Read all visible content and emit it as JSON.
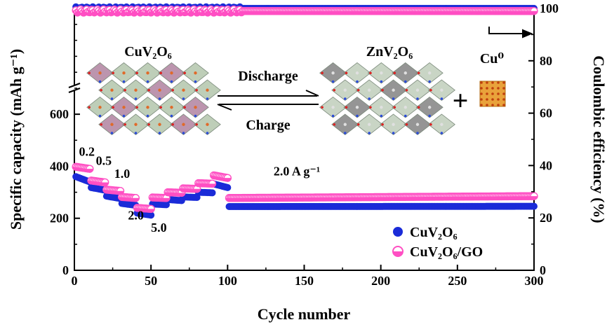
{
  "chart_data": {
    "type": "scatter",
    "xlabel": "Cycle number",
    "ylabel": "Specific capacity (mAh g⁻¹)",
    "y2label": "Coulombic efficiency (%)",
    "xlim": [
      0,
      300
    ],
    "ylim": [
      0,
      1000
    ],
    "y2lim": [
      0,
      100
    ],
    "x_ticks": [
      "0",
      "50",
      "100",
      "150",
      "200",
      "250",
      "300"
    ],
    "y_ticks": [
      "0",
      "200",
      "400",
      "600"
    ],
    "y2_ticks": [
      "0",
      "20",
      "40",
      "60",
      "80",
      "100"
    ],
    "axis_break": true,
    "legend_position": "bottom-right",
    "rate_labels": [
      {
        "text": "0.2",
        "x": 3,
        "y": 440
      },
      {
        "text": "0.5",
        "x": 14,
        "y": 405
      },
      {
        "text": "1.0",
        "x": 26,
        "y": 355
      },
      {
        "text": "2.0",
        "x": 35,
        "y": 195
      },
      {
        "text": "5.0",
        "x": 50,
        "y": 148
      },
      {
        "text": "2.0 A g⁻¹",
        "x": 130,
        "y": 365
      }
    ],
    "series": [
      {
        "name": "CuV₂O₆",
        "color": "#1a2bd8",
        "marker": "circle",
        "segments": [
          {
            "x_start": 1,
            "x_end": 10,
            "y_start": 360,
            "y_end": 340
          },
          {
            "x_start": 11,
            "x_end": 20,
            "y_start": 318,
            "y_end": 308
          },
          {
            "x_start": 21,
            "x_end": 30,
            "y_start": 285,
            "y_end": 276
          },
          {
            "x_start": 31,
            "x_end": 40,
            "y_start": 257,
            "y_end": 250
          },
          {
            "x_start": 41,
            "x_end": 50,
            "y_start": 220,
            "y_end": 212
          },
          {
            "x_start": 51,
            "x_end": 60,
            "y_start": 255,
            "y_end": 252
          },
          {
            "x_start": 61,
            "x_end": 70,
            "y_start": 272,
            "y_end": 268
          },
          {
            "x_start": 71,
            "x_end": 80,
            "y_start": 282,
            "y_end": 280
          },
          {
            "x_start": 81,
            "x_end": 90,
            "y_start": 300,
            "y_end": 298
          },
          {
            "x_start": 91,
            "x_end": 100,
            "y_start": 332,
            "y_end": 318
          },
          {
            "x_start": 101,
            "x_end": 300,
            "y_start": 245,
            "y_end": 246
          }
        ],
        "efficiency": {
          "x_start": 1,
          "x_end": 300,
          "value": 100
        }
      },
      {
        "name": "CuV₂O₆/GO",
        "color": "#ff4fc3",
        "marker": "half-filled circle",
        "segments": [
          {
            "x_start": 1,
            "x_end": 10,
            "y_start": 398,
            "y_end": 390
          },
          {
            "x_start": 11,
            "x_end": 20,
            "y_start": 345,
            "y_end": 338
          },
          {
            "x_start": 21,
            "x_end": 30,
            "y_start": 310,
            "y_end": 305
          },
          {
            "x_start": 31,
            "x_end": 40,
            "y_start": 282,
            "y_end": 278
          },
          {
            "x_start": 41,
            "x_end": 50,
            "y_start": 240,
            "y_end": 236
          },
          {
            "x_start": 51,
            "x_end": 60,
            "y_start": 280,
            "y_end": 278
          },
          {
            "x_start": 61,
            "x_end": 70,
            "y_start": 300,
            "y_end": 298
          },
          {
            "x_start": 71,
            "x_end": 80,
            "y_start": 315,
            "y_end": 313
          },
          {
            "x_start": 81,
            "x_end": 90,
            "y_start": 335,
            "y_end": 333
          },
          {
            "x_start": 91,
            "x_end": 100,
            "y_start": 365,
            "y_end": 355
          },
          {
            "x_start": 101,
            "x_end": 300,
            "y_start": 278,
            "y_end": 285
          }
        ],
        "efficiency": {
          "x_start": 1,
          "x_end": 300,
          "value": 99
        }
      }
    ],
    "inset": {
      "left_label": "CuV₂O₆",
      "right_label": "ZnV₂O₆",
      "product_label": "Cu⁰",
      "plus": "+",
      "arrow_top": "Discharge",
      "arrow_bottom": "Charge"
    }
  }
}
